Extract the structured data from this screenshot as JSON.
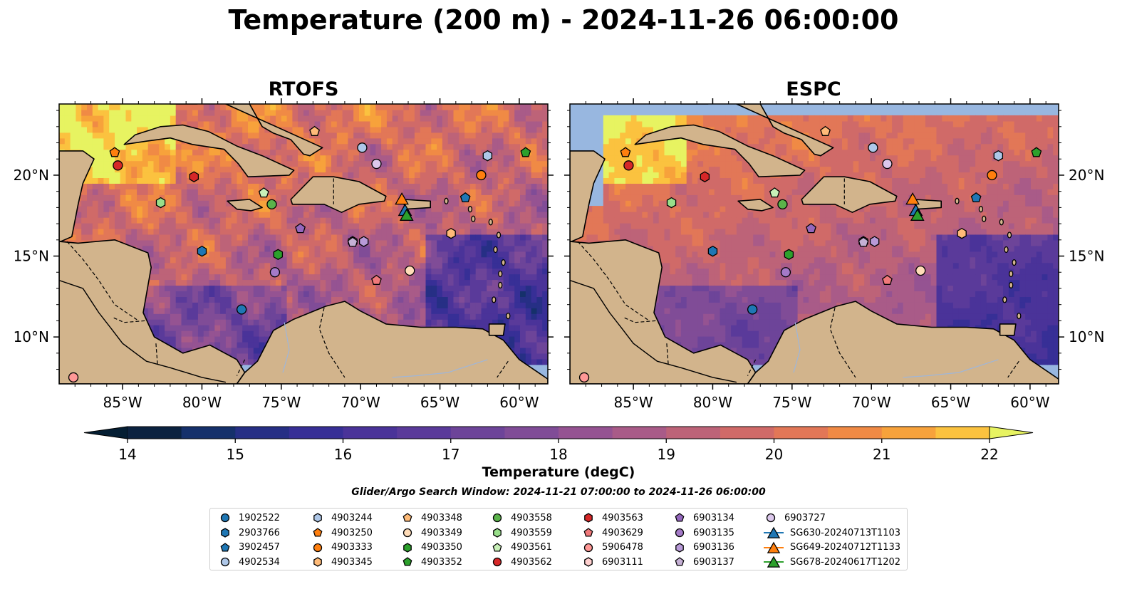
{
  "title": "Temperature (200 m) - 2024-11-26 06:00:00",
  "panels": [
    {
      "title": "RTOFS"
    },
    {
      "title": "ESPC"
    }
  ],
  "map": {
    "lon_range": [
      -89,
      -58.2
    ],
    "lat_range": [
      7.1,
      24.4
    ],
    "lon_ticks": [
      "85°W",
      "80°W",
      "75°W",
      "70°W",
      "65°W",
      "60°W"
    ],
    "lat_ticks": [
      "20°N",
      "15°N",
      "10°N"
    ],
    "land_color": "#d2b48c",
    "shallow_water_color": "#98b7e0",
    "deep_land_corner_color": "#072337"
  },
  "colorbar": {
    "label": "Temperature (degC)",
    "min": 14,
    "max": 22,
    "step": 0.5,
    "extend": "both",
    "tick_labels": [
      "14",
      "15",
      "16",
      "17",
      "18",
      "19",
      "20",
      "21",
      "22"
    ],
    "colormap": "thermal"
  },
  "search_window": "Glider/Argo Search Window: 2024-11-21 07:00:00 to 2024-11-26 06:00:00",
  "legend": {
    "columns": [
      [
        {
          "label": "1902522",
          "marker": "circle",
          "color": "#1f77b4"
        },
        {
          "label": "2903766",
          "marker": "hexagon",
          "color": "#1f77b4"
        },
        {
          "label": "3902457",
          "marker": "pentagon",
          "color": "#1f77b4"
        },
        {
          "label": "4902534",
          "marker": "circle",
          "color": "#aec7e8"
        }
      ],
      [
        {
          "label": "4903244",
          "marker": "hexagon",
          "color": "#aec7e8"
        },
        {
          "label": "4903250",
          "marker": "pentagon",
          "color": "#ff7f0e"
        },
        {
          "label": "4903333",
          "marker": "circle",
          "color": "#ff7f0e"
        },
        {
          "label": "4903345",
          "marker": "hexagon",
          "color": "#ffbb78"
        }
      ],
      [
        {
          "label": "4903348",
          "marker": "pentagon",
          "color": "#ffbb78"
        },
        {
          "label": "4903349",
          "marker": "circle",
          "color": "#ffdcb8"
        },
        {
          "label": "4903350",
          "marker": "hexagon",
          "color": "#2ca02c"
        },
        {
          "label": "4903352",
          "marker": "pentagon",
          "color": "#2ca02c"
        }
      ],
      [
        {
          "label": "4903558",
          "marker": "circle",
          "color": "#5ab34a"
        },
        {
          "label": "4903559",
          "marker": "hexagon",
          "color": "#98df8a"
        },
        {
          "label": "4903561",
          "marker": "pentagon",
          "color": "#c8f0b8"
        },
        {
          "label": "4903562",
          "marker": "circle",
          "color": "#d62728"
        }
      ],
      [
        {
          "label": "4903563",
          "marker": "hexagon",
          "color": "#d62728"
        },
        {
          "label": "4903629",
          "marker": "pentagon",
          "color": "#f0797a"
        },
        {
          "label": "5906478",
          "marker": "circle",
          "color": "#ff9896"
        },
        {
          "label": "6903111",
          "marker": "hexagon",
          "color": "#ffd0cf"
        }
      ],
      [
        {
          "label": "6903134",
          "marker": "pentagon",
          "color": "#9467bd"
        },
        {
          "label": "6903135",
          "marker": "circle",
          "color": "#a47ac8"
        },
        {
          "label": "6903136",
          "marker": "hexagon",
          "color": "#b89ad8"
        },
        {
          "label": "6903137",
          "marker": "pentagon",
          "color": "#c5b0d5"
        }
      ],
      [
        {
          "label": "6903727",
          "marker": "circle",
          "color": "#dcc8ec"
        },
        {
          "label": "SG630-20240713T1103",
          "marker": "triangle-line",
          "color": "#1f77b4"
        },
        {
          "label": "SG649-20240712T1133",
          "marker": "triangle-line",
          "color": "#ff7f0e"
        },
        {
          "label": "SG678-20240617T1202",
          "marker": "triangle-line",
          "color": "#2ca02c"
        }
      ]
    ]
  },
  "platforms": [
    {
      "id": "1902522",
      "lon": -77.5,
      "lat": 11.7
    },
    {
      "id": "2903766",
      "lon": -80.0,
      "lat": 15.3
    },
    {
      "id": "3902457",
      "lon": -63.4,
      "lat": 18.6
    },
    {
      "id": "4902534",
      "lon": -69.9,
      "lat": 21.7
    },
    {
      "id": "4903244",
      "lon": -62.0,
      "lat": 21.2
    },
    {
      "id": "4903250",
      "lon": -85.5,
      "lat": 21.4
    },
    {
      "id": "4903333",
      "lon": -62.4,
      "lat": 20.0
    },
    {
      "id": "4903345",
      "lon": -64.3,
      "lat": 16.4
    },
    {
      "id": "4903348",
      "lon": -72.9,
      "lat": 22.7
    },
    {
      "id": "4903349",
      "lon": -66.9,
      "lat": 14.1
    },
    {
      "id": "4903350",
      "lon": -75.2,
      "lat": 15.1
    },
    {
      "id": "4903352",
      "lon": -59.6,
      "lat": 21.4
    },
    {
      "id": "4903558",
      "lon": -75.6,
      "lat": 18.2
    },
    {
      "id": "4903559",
      "lon": -82.6,
      "lat": 18.3
    },
    {
      "id": "4903561",
      "lon": -76.1,
      "lat": 18.9
    },
    {
      "id": "4903562",
      "lon": -85.3,
      "lat": 20.6
    },
    {
      "id": "4903563",
      "lon": -80.5,
      "lat": 19.9
    },
    {
      "id": "4903629",
      "lon": -69.0,
      "lat": 13.5
    },
    {
      "id": "5906478",
      "lon": -88.1,
      "lat": 7.5
    },
    {
      "id": "6903111",
      "lon": -70.5,
      "lat": 15.9
    },
    {
      "id": "6903134",
      "lon": -73.8,
      "lat": 16.7
    },
    {
      "id": "6903135",
      "lon": -75.4,
      "lat": 14.0
    },
    {
      "id": "6903136",
      "lon": -69.8,
      "lat": 15.9
    },
    {
      "id": "6903137",
      "lon": -70.5,
      "lat": 15.85
    },
    {
      "id": "6903727",
      "lon": -69.0,
      "lat": 20.7
    },
    {
      "id": "SG630-20240713T1103",
      "lon": -67.2,
      "lat": 17.8
    },
    {
      "id": "SG649-20240712T1133",
      "lon": -67.4,
      "lat": 18.5
    },
    {
      "id": "SG678-20240617T1202",
      "lon": -67.1,
      "lat": 17.5
    }
  ]
}
